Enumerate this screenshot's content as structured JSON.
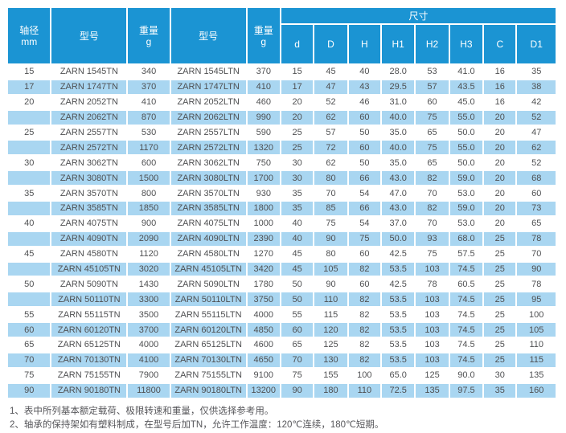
{
  "table": {
    "header": {
      "shaft_top": "轴径",
      "shaft_bottom": "mm",
      "model_label": "型号",
      "weight_top": "重量",
      "weight_bottom": "g",
      "model_label_2": "型号",
      "weight_top_2": "重量",
      "weight_bottom_2": "g",
      "dims_group_label": "尺寸",
      "dim_columns": [
        "d",
        "D",
        "H",
        "H1",
        "H2",
        "H3",
        "C",
        "D1"
      ]
    },
    "rows": [
      {
        "shaft_mm": "15",
        "model_tn": "ZARN 1545TN",
        "weight_tn": "340",
        "model_ltn": "ZARN 1545LTN",
        "weight_ltn": "370",
        "dims": [
          "15",
          "45",
          "40",
          "28.0",
          "53",
          "41.0",
          "16",
          "35"
        ]
      },
      {
        "shaft_mm": "17",
        "model_tn": "ZARN 1747TN",
        "weight_tn": "370",
        "model_ltn": "ZARN 1747LTN",
        "weight_ltn": "410",
        "dims": [
          "17",
          "47",
          "43",
          "29.5",
          "57",
          "43.5",
          "16",
          "38"
        ]
      },
      {
        "shaft_mm": "20",
        "model_tn": "ZARN 2052TN",
        "weight_tn": "410",
        "model_ltn": "ZARN 2052LTN",
        "weight_ltn": "460",
        "dims": [
          "20",
          "52",
          "46",
          "31.0",
          "60",
          "45.0",
          "16",
          "42"
        ]
      },
      {
        "shaft_mm": "",
        "model_tn": "ZARN 2062TN",
        "weight_tn": "870",
        "model_ltn": "ZARN 2062LTN",
        "weight_ltn": "990",
        "dims": [
          "20",
          "62",
          "60",
          "40.0",
          "75",
          "55.0",
          "20",
          "52"
        ]
      },
      {
        "shaft_mm": "25",
        "model_tn": "ZARN 2557TN",
        "weight_tn": "530",
        "model_ltn": "ZARN 2557LTN",
        "weight_ltn": "590",
        "dims": [
          "25",
          "57",
          "50",
          "35.0",
          "65",
          "50.0",
          "20",
          "47"
        ]
      },
      {
        "shaft_mm": "",
        "model_tn": "ZARN 2572TN",
        "weight_tn": "1170",
        "model_ltn": "ZARN 2572LTN",
        "weight_ltn": "1320",
        "dims": [
          "25",
          "72",
          "60",
          "40.0",
          "75",
          "55.0",
          "20",
          "62"
        ]
      },
      {
        "shaft_mm": "30",
        "model_tn": "ZARN 3062TN",
        "weight_tn": "600",
        "model_ltn": "ZARN 3062LTN",
        "weight_ltn": "750",
        "dims": [
          "30",
          "62",
          "50",
          "35.0",
          "65",
          "50.0",
          "20",
          "52"
        ]
      },
      {
        "shaft_mm": "",
        "model_tn": "ZARN 3080TN",
        "weight_tn": "1500",
        "model_ltn": "ZARN 3080LTN",
        "weight_ltn": "1700",
        "dims": [
          "30",
          "80",
          "66",
          "43.0",
          "82",
          "59.0",
          "20",
          "68"
        ]
      },
      {
        "shaft_mm": "35",
        "model_tn": "ZARN 3570TN",
        "weight_tn": "800",
        "model_ltn": "ZARN 3570LTN",
        "weight_ltn": "930",
        "dims": [
          "35",
          "70",
          "54",
          "47.0",
          "70",
          "53.0",
          "20",
          "60"
        ]
      },
      {
        "shaft_mm": "",
        "model_tn": "ZARN 3585TN",
        "weight_tn": "1850",
        "model_ltn": "ZARN 3585LTN",
        "weight_ltn": "1800",
        "dims": [
          "35",
          "85",
          "66",
          "43.0",
          "82",
          "59.0",
          "20",
          "73"
        ]
      },
      {
        "shaft_mm": "40",
        "model_tn": "ZARN 4075TN",
        "weight_tn": "900",
        "model_ltn": "ZARN 4075LTN",
        "weight_ltn": "1000",
        "dims": [
          "40",
          "75",
          "54",
          "37.0",
          "70",
          "53.0",
          "20",
          "65"
        ]
      },
      {
        "shaft_mm": "",
        "model_tn": "ZARN 4090TN",
        "weight_tn": "2090",
        "model_ltn": "ZARN 4090LTN",
        "weight_ltn": "2390",
        "dims": [
          "40",
          "90",
          "75",
          "50.0",
          "93",
          "68.0",
          "25",
          "78"
        ]
      },
      {
        "shaft_mm": "45",
        "model_tn": "ZARN 4580TN",
        "weight_tn": "1120",
        "model_ltn": "ZARN 4580LTN",
        "weight_ltn": "1270",
        "dims": [
          "45",
          "80",
          "60",
          "42.5",
          "75",
          "57.5",
          "25",
          "70"
        ]
      },
      {
        "shaft_mm": "",
        "model_tn": "ZARN 45105TN",
        "weight_tn": "3020",
        "model_ltn": "ZARN 45105LTN",
        "weight_ltn": "3420",
        "dims": [
          "45",
          "105",
          "82",
          "53.5",
          "103",
          "74.5",
          "25",
          "90"
        ]
      },
      {
        "shaft_mm": "50",
        "model_tn": "ZARN 5090TN",
        "weight_tn": "1430",
        "model_ltn": "ZARN 5090LTN",
        "weight_ltn": "1780",
        "dims": [
          "50",
          "90",
          "60",
          "42.5",
          "78",
          "60.5",
          "25",
          "78"
        ]
      },
      {
        "shaft_mm": "",
        "model_tn": "ZARN 50110TN",
        "weight_tn": "3300",
        "model_ltn": "ZARN 50110LTN",
        "weight_ltn": "3750",
        "dims": [
          "50",
          "110",
          "82",
          "53.5",
          "103",
          "74.5",
          "25",
          "95"
        ]
      },
      {
        "shaft_mm": "55",
        "model_tn": "ZARN 55115TN",
        "weight_tn": "3500",
        "model_ltn": "ZARN 55115LTN",
        "weight_ltn": "4000",
        "dims": [
          "55",
          "115",
          "82",
          "53.5",
          "103",
          "74.5",
          "25",
          "100"
        ]
      },
      {
        "shaft_mm": "60",
        "model_tn": "ZARN 60120TN",
        "weight_tn": "3700",
        "model_ltn": "ZARN 60120LTN",
        "weight_ltn": "4850",
        "dims": [
          "60",
          "120",
          "82",
          "53.5",
          "103",
          "74.5",
          "25",
          "105"
        ]
      },
      {
        "shaft_mm": "65",
        "model_tn": "ZARN 65125TN",
        "weight_tn": "4000",
        "model_ltn": "ZARN 65125LTN",
        "weight_ltn": "4600",
        "dims": [
          "65",
          "125",
          "82",
          "53.5",
          "103",
          "74.5",
          "25",
          "110"
        ]
      },
      {
        "shaft_mm": "70",
        "model_tn": "ZARN 70130TN",
        "weight_tn": "4100",
        "model_ltn": "ZARN 70130LTN",
        "weight_ltn": "4650",
        "dims": [
          "70",
          "130",
          "82",
          "53.5",
          "103",
          "74.5",
          "25",
          "115"
        ]
      },
      {
        "shaft_mm": "75",
        "model_tn": "ZARN 75155TN",
        "weight_tn": "7900",
        "model_ltn": "ZARN 75155LTN",
        "weight_ltn": "9100",
        "dims": [
          "75",
          "155",
          "100",
          "65.0",
          "125",
          "90.0",
          "30",
          "135"
        ]
      },
      {
        "shaft_mm": "90",
        "model_tn": "ZARN 90180TN",
        "weight_tn": "11800",
        "model_ltn": "ZARN 90180LTN",
        "weight_ltn": "13200",
        "dims": [
          "90",
          "180",
          "110",
          "72.5",
          "135",
          "97.5",
          "35",
          "160"
        ]
      }
    ]
  },
  "notes": [
    "1、表中所列基本额定载荷、极限转速和重量，仅供选择参考用。",
    "2、轴承的保持架如有塑料制成，在型号后加TN，允许工作温度：120℃连续，180℃短期。"
  ],
  "colors": {
    "header_blue": "#1b94d3",
    "stripe_blue": "#a9d6f1",
    "cell_text": "#4f5052",
    "note_text": "#56565a"
  }
}
